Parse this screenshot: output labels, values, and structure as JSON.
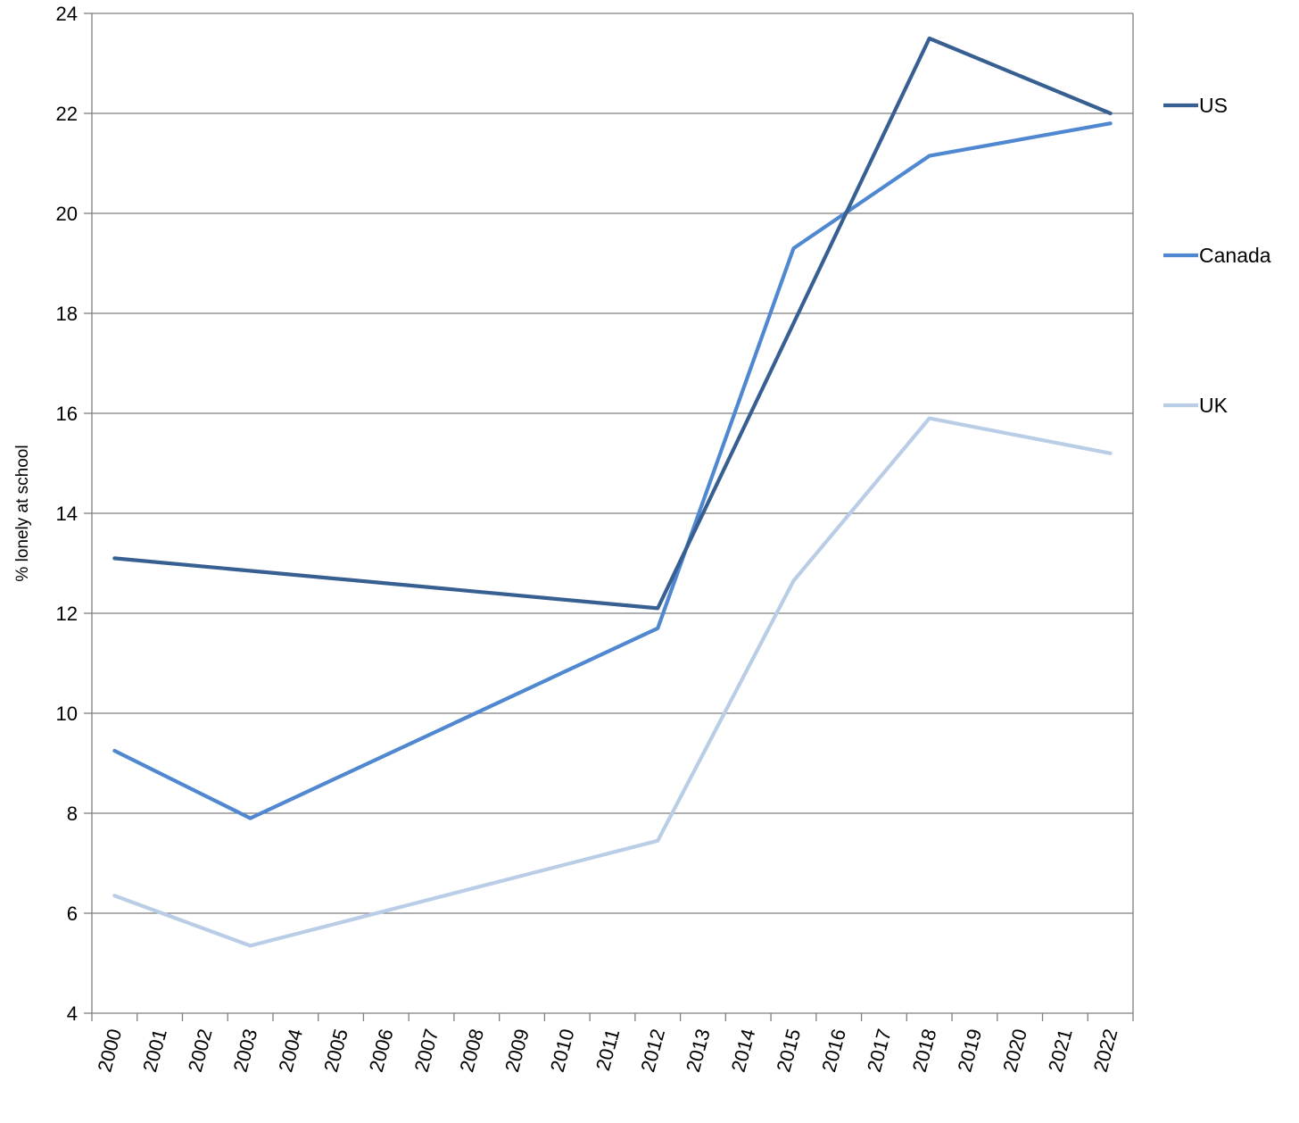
{
  "chart_data": {
    "type": "line",
    "title": "",
    "xlabel": "",
    "ylabel": "% lonely at school",
    "ylim": [
      4,
      24
    ],
    "y_ticks": [
      4,
      6,
      8,
      10,
      12,
      14,
      16,
      18,
      20,
      22,
      24
    ],
    "categories": [
      "2000",
      "2001",
      "2002",
      "2003",
      "2004",
      "2005",
      "2006",
      "2007",
      "2008",
      "2009",
      "2010",
      "2011",
      "2012",
      "2013",
      "2014",
      "2015",
      "2016",
      "2017",
      "2018",
      "2019",
      "2020",
      "2021",
      "2022"
    ],
    "grid": "horizontal",
    "legend_placement": "right",
    "series": [
      {
        "name": "US",
        "color": "#375f92",
        "points": [
          {
            "x": "2000",
            "y": 13.1
          },
          {
            "x": "2012",
            "y": 12.1
          },
          {
            "x": "2018",
            "y": 23.5
          },
          {
            "x": "2022",
            "y": 22.0
          }
        ]
      },
      {
        "name": "Canada",
        "color": "#4f87d0",
        "points": [
          {
            "x": "2000",
            "y": 9.25
          },
          {
            "x": "2003",
            "y": 7.9
          },
          {
            "x": "2012",
            "y": 11.7
          },
          {
            "x": "2015",
            "y": 19.3
          },
          {
            "x": "2018",
            "y": 21.15
          },
          {
            "x": "2022",
            "y": 21.8
          }
        ]
      },
      {
        "name": "UK",
        "color": "#b9cde6",
        "points": [
          {
            "x": "2000",
            "y": 6.35
          },
          {
            "x": "2003",
            "y": 5.35
          },
          {
            "x": "2012",
            "y": 7.45
          },
          {
            "x": "2015",
            "y": 12.65
          },
          {
            "x": "2018",
            "y": 15.9
          },
          {
            "x": "2022",
            "y": 15.2
          }
        ]
      }
    ]
  }
}
